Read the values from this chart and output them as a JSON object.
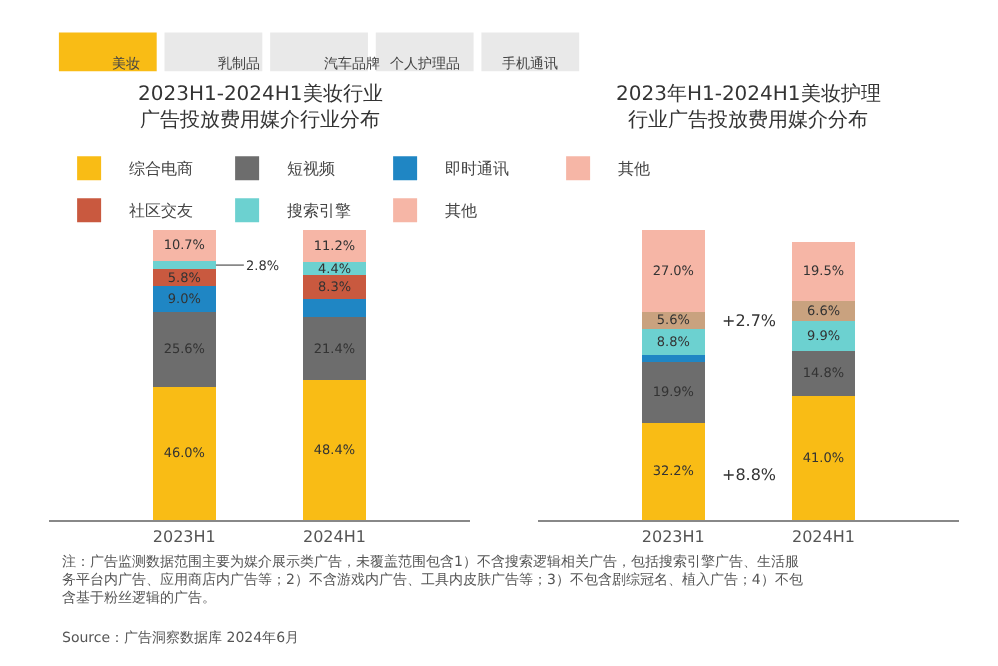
{
  "chart_data": [
    {
      "type": "other",
      "annotations": [
        "美妆",
        "乳制品",
        "汽车品牌",
        "个人护理品",
        "手机通讯"
      ]
    },
    {
      "type": "bar",
      "title": "2023H1-2024H1美妆行业广告投放费用媒介行业分布",
      "stacked": true,
      "legend": "top",
      "tick_labels": "x",
      "categories": [
        "2023H1",
        "2024H1"
      ],
      "series": [
        {
          "name": "综合电商",
          "color": "#f9bc15",
          "values": [
            46.0,
            48.4
          ],
          "value_labels": [
            "46.0%",
            "48.4%"
          ]
        },
        {
          "name": "短视频",
          "color": "#6d6d6d",
          "values": [
            25.6,
            21.4
          ],
          "value_labels": [
            "25.6%",
            "21.4%"
          ]
        },
        {
          "name": "即时通讯",
          "color": "#1f86c4",
          "values": [
            9.0,
            6.3
          ],
          "value_labels": [
            "9.0%",
            null
          ]
        },
        {
          "name": "社区交友",
          "color": "#c9593f",
          "values": [
            5.8,
            8.3
          ],
          "value_labels": [
            "5.8%",
            "8.3%"
          ]
        },
        {
          "name": "搜索引擎",
          "color": "#6cd1d0",
          "values": [
            2.8,
            4.4
          ],
          "value_labels": [
            "2.8%",
            "4.4%"
          ]
        },
        {
          "name": "其他",
          "color": "#f6b6a6",
          "values": [
            10.7,
            11.2
          ],
          "value_labels": [
            "10.7%",
            "11.2%"
          ]
        }
      ]
    },
    {
      "type": "bar",
      "title": "2023年H1-2024H1美妆护理行业广告投放费用媒介分布",
      "stacked": true,
      "legend": "top",
      "tick_labels": "x",
      "categories": [
        "2023H1",
        "2024H1"
      ],
      "annotations": [
        "+2.7%",
        "+8.8%"
      ],
      "series": [
        {
          "color": "#f9bc15",
          "values": [
            32.2,
            41.0
          ],
          "value_labels": [
            "32.2%",
            "41.0%"
          ]
        },
        {
          "color": "#6d6d6d",
          "values": [
            19.9,
            14.8
          ],
          "value_labels": [
            "19.9%",
            "14.8%"
          ]
        },
        {
          "color": "#1f86c4",
          "values": [
            2.3,
            null
          ],
          "value_labels": [
            null,
            null
          ]
        },
        {
          "color": "#6cd1d0",
          "values": [
            8.8,
            9.9
          ],
          "value_labels": [
            "8.8%",
            "9.9%"
          ]
        },
        {
          "color": "#c9a27f",
          "values": [
            5.6,
            6.6
          ],
          "value_labels": [
            "5.6%",
            "6.6%"
          ]
        },
        {
          "name": "其他",
          "color": "#f6b6a6",
          "values": [
            27.0,
            19.5
          ],
          "value_labels": [
            "27.0%",
            "19.5%"
          ]
        }
      ]
    },
    {
      "type": "other",
      "annotations": [
        "注：广告监测数据范围主要为媒介展示类广告，未覆盖范围包含1）不含搜索逻辑相关广告，包括搜索引擎广告、生活服务平台内广告、应用商店内广告等；2）不含游戏内广告、工具内皮肤广告等；3）不包含剧综冠名、植入广告；4）不包含基于粉丝逻辑的广告。",
        "Source：广告洞察数据库 2024年6月"
      ]
    }
  ]
}
